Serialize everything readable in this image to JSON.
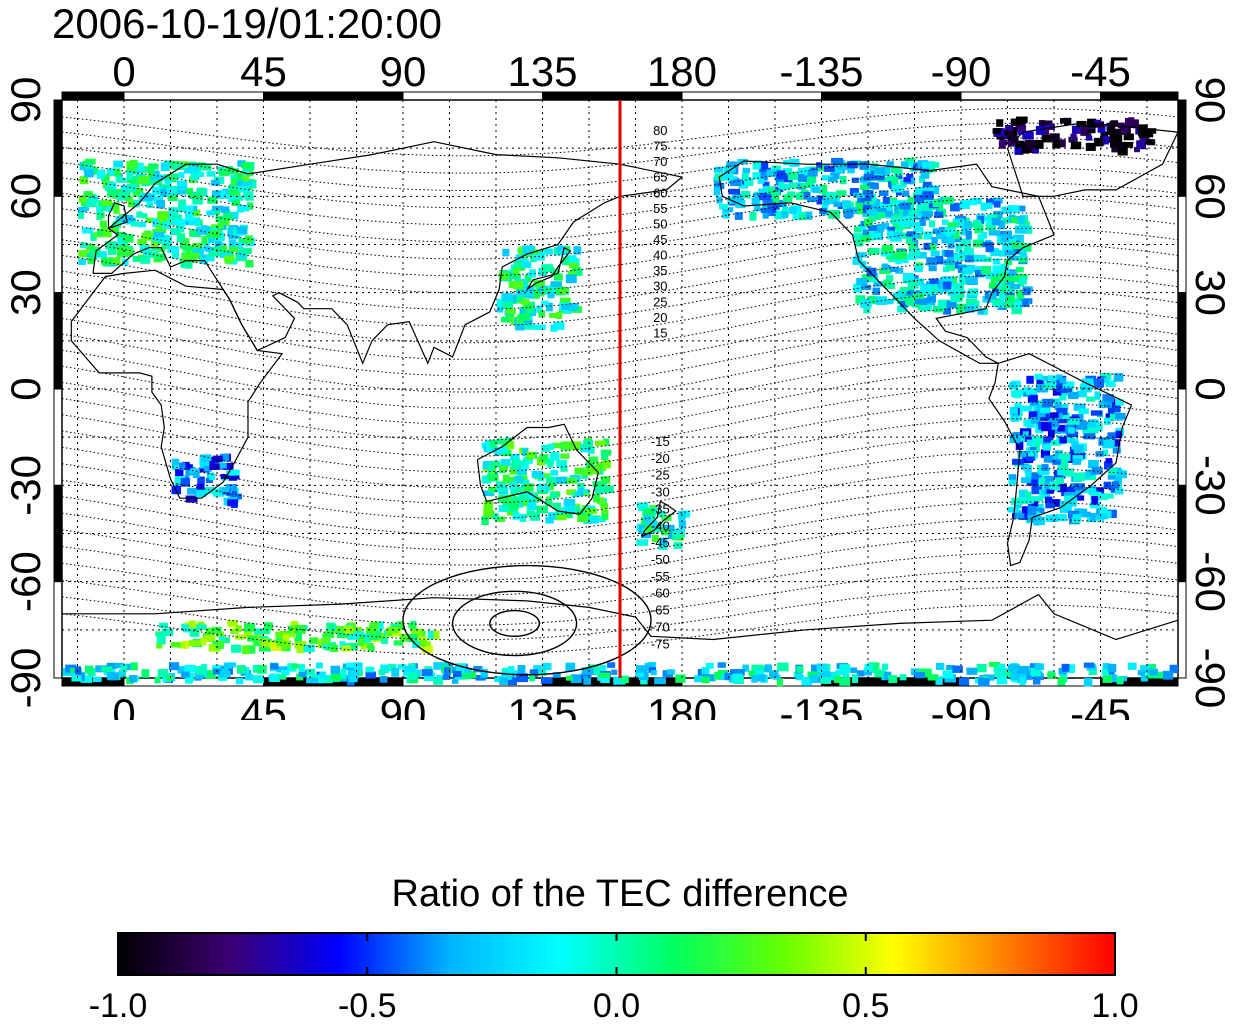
{
  "map": {
    "title": "2006-10-19/01:20:00",
    "projection": "equirectangular",
    "lon_range": [
      -20,
      340
    ],
    "lat_range": [
      -90,
      90
    ],
    "grid": true,
    "lon_ticks": [
      0,
      45,
      90,
      135,
      180,
      225,
      270,
      315
    ],
    "lon_tick_labels": [
      "0",
      "45",
      "90",
      "135",
      "180",
      "-135",
      "-90",
      "-45"
    ],
    "lat_ticks": [
      90,
      60,
      30,
      0,
      -30,
      -60,
      -90
    ],
    "lat_tick_labels": [
      "90",
      "60",
      "30",
      "0",
      "-30",
      "-60",
      "-90"
    ],
    "meridian_line": {
      "lon": 160,
      "color": "#e00000"
    },
    "magnetic_lat_labels_north": [
      "80",
      "75",
      "70",
      "65",
      "60",
      "55",
      "50",
      "45",
      "40",
      "35",
      "30",
      "25",
      "20",
      "15"
    ],
    "magnetic_lat_labels_south": [
      "-15",
      "-20",
      "-25",
      "-30",
      "-35",
      "-40",
      "-45",
      "-50",
      "-55",
      "-60",
      "-65",
      "-70",
      "-75"
    ],
    "data_regions": [
      {
        "region": "Europe",
        "lon": [
          -15,
          40
        ],
        "lat": [
          40,
          72
        ],
        "value": 0.0
      },
      {
        "region": "North America",
        "lon": [
          235,
          290
        ],
        "lat": [
          25,
          60
        ],
        "value": -0.15
      },
      {
        "region": "Alaska / Canada",
        "lon": [
          190,
          260
        ],
        "lat": [
          55,
          72
        ],
        "value": -0.2
      },
      {
        "region": "Greenland",
        "lon": [
          280,
          330
        ],
        "lat": [
          75,
          85
        ],
        "value": -0.9
      },
      {
        "region": "Japan / East Asia",
        "lon": [
          120,
          145
        ],
        "lat": [
          20,
          45
        ],
        "value": 0.0
      },
      {
        "region": "Australia",
        "lon": [
          115,
          155
        ],
        "lat": [
          -40,
          -15
        ],
        "value": 0.05
      },
      {
        "region": "New Zealand",
        "lon": [
          165,
          180
        ],
        "lat": [
          -48,
          -35
        ],
        "value": -0.05
      },
      {
        "region": "South America",
        "lon": [
          285,
          320
        ],
        "lat": [
          -40,
          5
        ],
        "value": -0.3
      },
      {
        "region": "Southern Africa",
        "lon": [
          15,
          35
        ],
        "lat": [
          -35,
          -20
        ],
        "value": -0.35
      },
      {
        "region": "Antarctica coast",
        "lon": [
          10,
          100
        ],
        "lat": [
          -80,
          -72
        ],
        "value": 0.2
      },
      {
        "region": "Antarctica edge",
        "lon": [
          -20,
          340
        ],
        "lat": [
          -90,
          -85
        ],
        "value": -0.15
      }
    ]
  },
  "colorbar": {
    "title": "Ratio of the TEC difference",
    "min": -1.0,
    "max": 1.0,
    "tick_values": [
      -1.0,
      -0.5,
      0.0,
      0.5,
      1.0
    ],
    "tick_labels": [
      "-1.0",
      "-0.5",
      "0.0",
      "0.5",
      "1.0"
    ],
    "stops": [
      "#000000",
      "#3a0070",
      "#0000ff",
      "#00b4ff",
      "#00ffff",
      "#00ff64",
      "#64ff00",
      "#ffff00",
      "#ff8000",
      "#ff0000"
    ]
  }
}
